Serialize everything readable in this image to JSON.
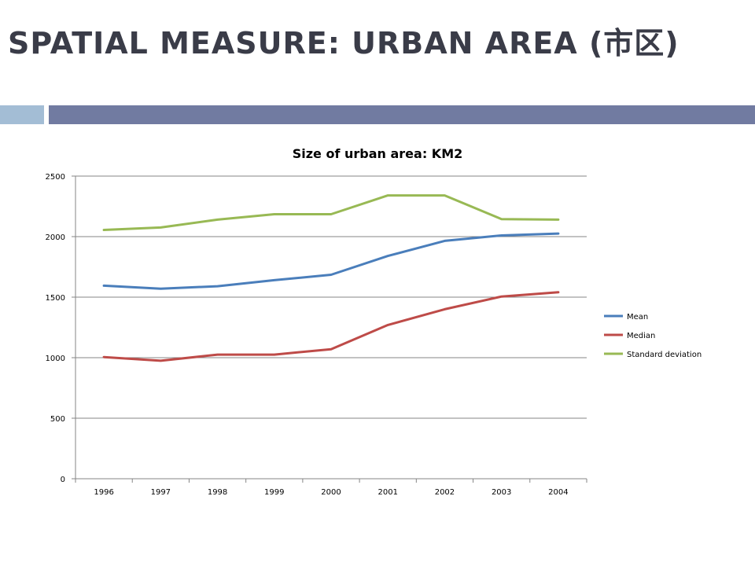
{
  "slide": {
    "title": "SPATIAL MEASURE: URBAN AREA (市区)"
  },
  "colors": {
    "title_text": "#3a3c48",
    "accent_light": "#a3bdd5",
    "accent_dark": "#717ba1"
  },
  "chart_data": {
    "type": "line",
    "title": "Size of urban area: KM2",
    "xlabel": "",
    "ylabel": "",
    "categories": [
      "1996",
      "1997",
      "1998",
      "1999",
      "2000",
      "2001",
      "2002",
      "2003",
      "2004"
    ],
    "ylim": [
      0,
      2500
    ],
    "yticks": [
      "0",
      "500",
      "1000",
      "1500",
      "2000",
      "2500"
    ],
    "grid": true,
    "legend_position": "right",
    "series": [
      {
        "name": "Mean",
        "color": "#4a7ebb",
        "values": [
          1595,
          1570,
          1590,
          1640,
          1685,
          1840,
          1965,
          2010,
          2025
        ]
      },
      {
        "name": "Median",
        "color": "#be4b48",
        "values": [
          1005,
          975,
          1025,
          1025,
          1070,
          1270,
          1400,
          1505,
          1540
        ]
      },
      {
        "name": "Standard deviation",
        "color": "#98b954",
        "values": [
          2055,
          2075,
          2140,
          2185,
          2185,
          2340,
          2340,
          2145,
          2140
        ]
      }
    ]
  }
}
